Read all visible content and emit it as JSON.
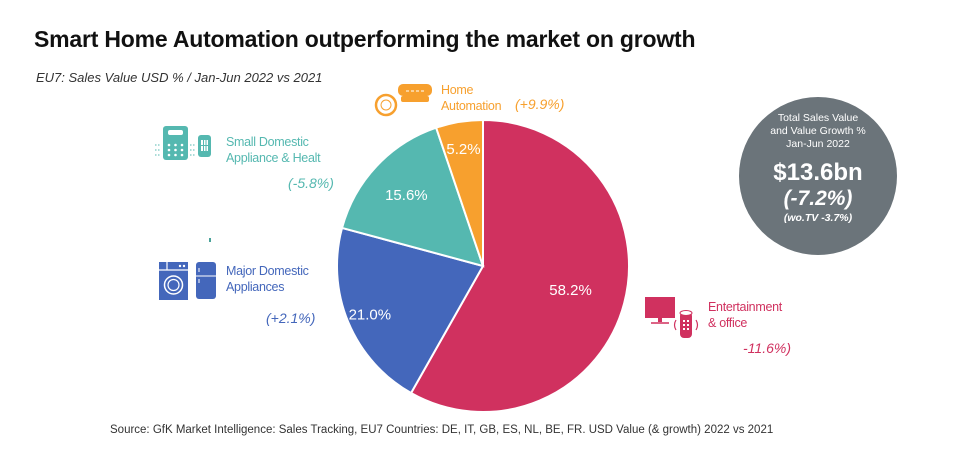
{
  "title": "Smart Home Automation outperforming the market on growth",
  "subtitle": "EU7: Sales Value USD % / Jan-Jun 2022 vs 2021",
  "source": "Source:  GfK Market Intelligence:  Sales Tracking,  EU7 Countries:  DE, IT, GB, ES, NL, BE, FR. USD Value (& growth) 2022 vs 2021",
  "chart_data": {
    "type": "pie",
    "title": "Smart Home Automation outperforming the market on growth",
    "subtitle": "EU7: Sales Value USD % / Jan-Jun 2022 vs 2021",
    "unit": "% of sales value (USD)",
    "start_angle": "12 o'clock, clockwise",
    "slices": [
      {
        "name": "Entertainment & office",
        "value": 58.2,
        "label": "58.2%",
        "growth": "-11.6%)",
        "color": "#d0315f",
        "icon": "tv-and-smart-speaker-icon"
      },
      {
        "name": "Major Domestic Appliances",
        "value": 21.0,
        "label": "21.0%",
        "growth": "(+2.1%)",
        "color": "#4467bb",
        "icon": "washing-machine-and-fridge-icon"
      },
      {
        "name": "Small Domestic Appliance & Healt",
        "value": 15.6,
        "label": "15.6%",
        "growth": "(-5.8%)",
        "color": "#55b8b0",
        "icon": "air-purifier-and-smartwatch-icon"
      },
      {
        "name": "Home Automation",
        "value": 5.2,
        "label": "5.2%",
        "growth": "(+9.9%)",
        "color": "#f7a02e",
        "icon": "smart-thermostat-and-smoke-detector-icon"
      }
    ],
    "legend": "labels around pie with icons"
  },
  "labels": {
    "home_automation": {
      "line1": "Home",
      "line2": "Automation",
      "growth": "(+9.9%)"
    },
    "small_domestic": {
      "line1": "Small Domestic",
      "line2": "Appliance & Healt",
      "growth": "(-5.8%)"
    },
    "major_domestic": {
      "line1": "Major Domestic",
      "line2": "Appliances",
      "growth": "(+2.1%)"
    },
    "entertainment": {
      "line1": "Entertainment",
      "line2": "& office",
      "growth": "-11.6%)"
    }
  },
  "total_badge": {
    "head1": "Total Sales Value",
    "head2": "and Value Growth %",
    "head3": "Jan-Jun 2022",
    "value": "$13.6bn",
    "growth": "(-7.2%)",
    "without_tv": "(wo.TV -3.7%)",
    "color": "#6b747a"
  },
  "colors": {
    "entertainment": "#d0315f",
    "major_domestic": "#4467bb",
    "small_domestic": "#55b8b0",
    "home_automation": "#f7a02e"
  }
}
